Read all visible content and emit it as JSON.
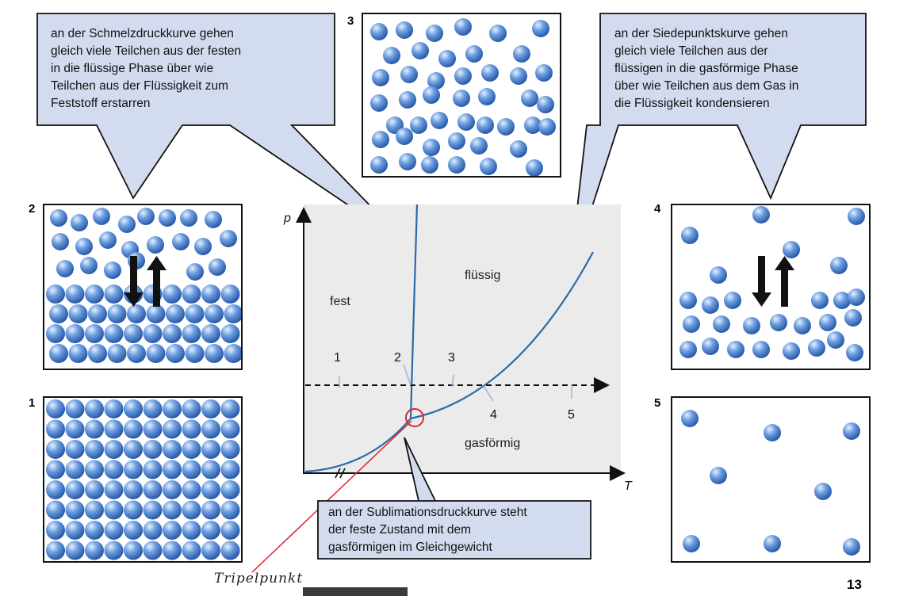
{
  "callouts": {
    "melting": [
      "an der Schmelzdruckkurve gehen",
      "gleich viele Teilchen aus der festen",
      "in die flüssige Phase über wie",
      "Teilchen aus der Flüssigkeit zum",
      "Feststoff erstarren"
    ],
    "boiling": [
      "an der Siedepunktskurve gehen",
      "gleich viele Teilchen aus der",
      "flüssigen in die gasförmige Phase",
      "über wie Teilchen aus dem Gas in",
      "die Flüssigkeit kondensieren"
    ],
    "sublimation": [
      "an der Sublimationsdruckkurve steht",
      "der feste Zustand mit dem",
      "gasförmigen im Gleichgewicht"
    ]
  },
  "panels": {
    "p1": "1",
    "p2": "2",
    "p3": "3",
    "p4": "4",
    "p5": "5"
  },
  "diagram": {
    "axis_p": "p",
    "axis_T": "T",
    "region_solid": "fest",
    "region_liquid": "flüssig",
    "region_gas": "gasförmig",
    "marks": [
      "1",
      "2",
      "3",
      "4",
      "5"
    ]
  },
  "annotation": "Tripelpunkt",
  "page_number": "13",
  "colors": {
    "phase_curve": "#2a6aa8",
    "callout_fill": "#d3dcef",
    "diagram_bg": "#ebebeb",
    "triple_point_marker": "#e0202a",
    "particle": "#5b8fd4"
  }
}
